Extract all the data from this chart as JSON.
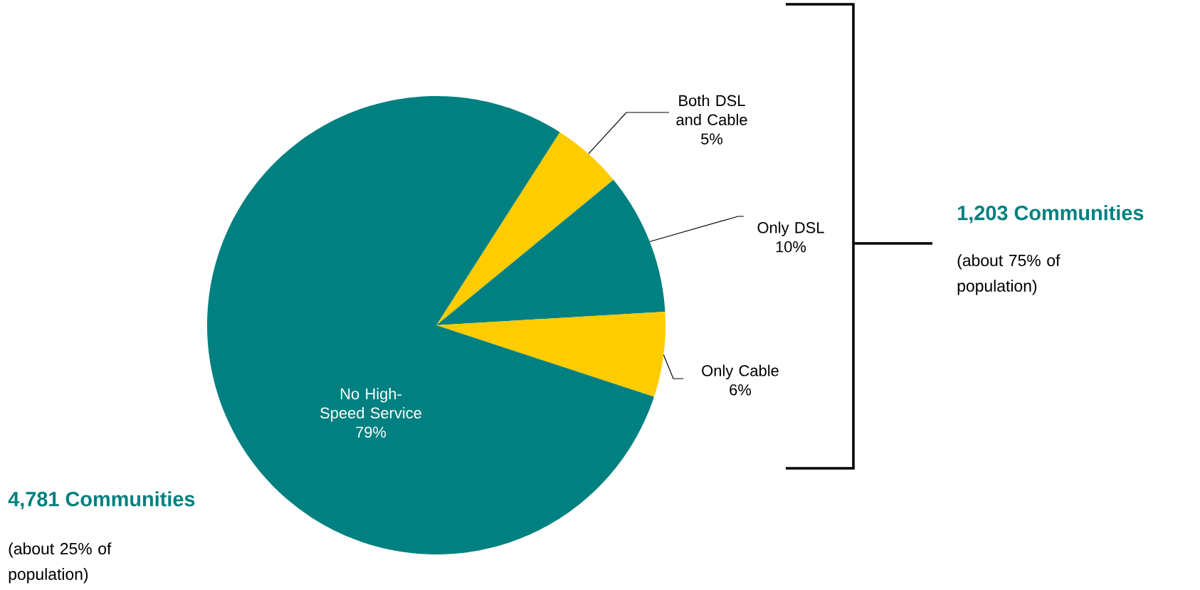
{
  "chart_data": {
    "type": "pie",
    "categories": [
      "Both DSL and Cable",
      "Only DSL",
      "Only Cable",
      "No High-Speed Service"
    ],
    "values": [
      5,
      10,
      6,
      79
    ],
    "value_labels": [
      "5%",
      "10%",
      "6%",
      "79%"
    ],
    "colors": [
      "#ffcc00",
      "#008080",
      "#ffcc00",
      "#008080"
    ],
    "annotations": [
      "1,203 Communities",
      "(about 75% of population)",
      "4,781 Communities",
      "(about 25% of population)"
    ]
  }
}
